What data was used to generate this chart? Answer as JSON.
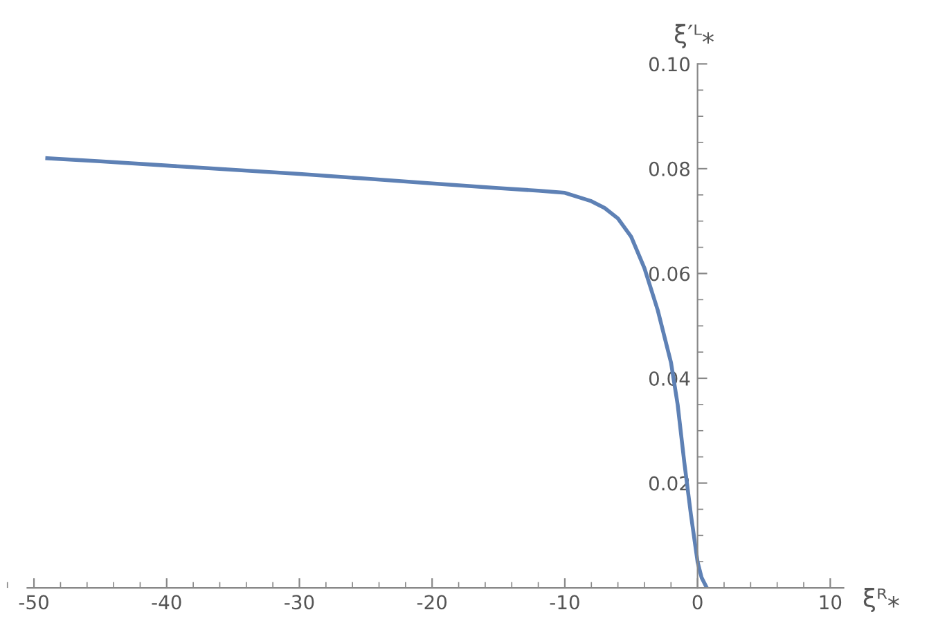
{
  "chart_data": {
    "type": "line",
    "xlabel": "ξᴿ⁎",
    "ylabel": "ξ′ᴸ⁎",
    "xlim": [
      -50.5,
      11
    ],
    "ylim": [
      0,
      0.1
    ],
    "xticks": [
      -50,
      -40,
      -30,
      -20,
      -10,
      0,
      10
    ],
    "yticks": [
      0.02,
      0.04,
      0.06,
      0.08,
      {
        "value": 0.1,
        "label": "0.10"
      }
    ],
    "grid": false,
    "legend": false,
    "series": [
      {
        "color": "#5e81b5",
        "x": [
          -49,
          -45,
          -40,
          -35,
          -30,
          -25,
          -20,
          -15,
          -12,
          -10,
          -8,
          -7,
          -6,
          -5,
          -4,
          -3,
          -2,
          -1.5,
          -1,
          -0.5,
          0,
          0.3,
          0.7
        ],
        "values": [
          0.082,
          0.0814,
          0.0806,
          0.0798,
          0.079,
          0.0781,
          0.0772,
          0.0763,
          0.0758,
          0.0754,
          0.0738,
          0.0725,
          0.0705,
          0.067,
          0.061,
          0.053,
          0.043,
          0.035,
          0.024,
          0.014,
          0.005,
          0.002,
          0.0
        ]
      }
    ]
  }
}
